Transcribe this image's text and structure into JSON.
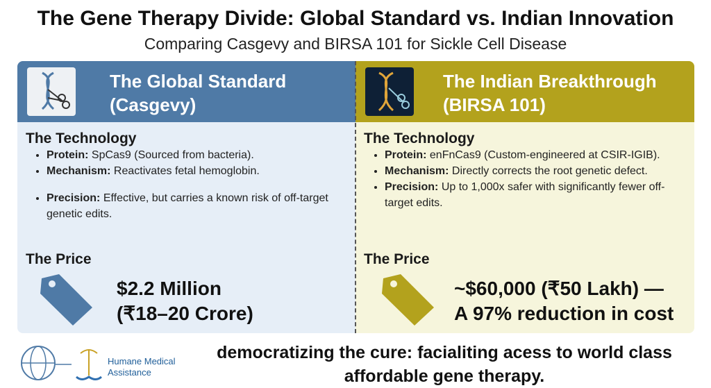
{
  "title": "The Gene Therapy Divide: Global Standard vs. Indian Innovation",
  "subtitle": "Comparing Casgevy and BIRSA 101 for Sickle Cell Disease",
  "panels": [
    {
      "header": [
        "The Global Standard",
        "(Casgevy)"
      ],
      "technology_heading": "The Technology",
      "bullets": [
        {
          "label": "Protein:",
          "text": "SpCas9 (Sourced from bacteria)."
        },
        {
          "label": "Mechanism:",
          "text": "Reactivates fetal hemoglobin."
        },
        {
          "label": "Precision:",
          "text": "Effective, but carries a known risk of off-target genetic edits."
        }
      ],
      "price_heading": "The Price",
      "price": [
        "$2.2 Million",
        "(₹18–20 Crore)"
      ]
    },
    {
      "header": [
        "The Indian Breakthrough",
        "(BIRSA 101)"
      ],
      "technology_heading": "The Technology",
      "bullets": [
        {
          "label": "Protein:",
          "text": "enFnCas9 (Custom-engineered at CSIR-IGIB)."
        },
        {
          "label": "Mechanism:",
          "text": "Directly corrects the root genetic defect."
        },
        {
          "label": "Precision:",
          "text": "Up to 1,000x safer with significantly fewer off-target edits."
        }
      ],
      "price_heading": "The Price",
      "price": [
        "~$60,000 (₹50 Lakh) —",
        "A 97% reduction in cost"
      ]
    }
  ],
  "footer": {
    "logo_text": [
      "Humane Medical",
      "Assistance"
    ],
    "tagline": [
      "democratizing the cure: facialiting acess to world class",
      "affordable gene therapy."
    ]
  }
}
